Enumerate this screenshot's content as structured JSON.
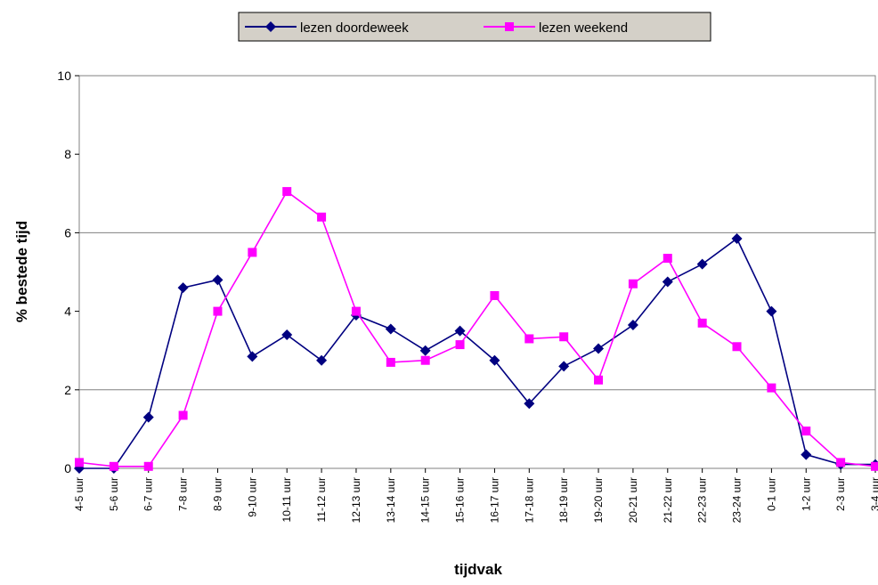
{
  "chart_data": {
    "type": "line",
    "title": "",
    "xlabel": "tijdvak",
    "ylabel": "% bestede tijd",
    "ylim": [
      0,
      10
    ],
    "yticks": [
      "0",
      "2",
      "4",
      "6",
      "8",
      "10"
    ],
    "grid": "horizontal at 2 and 6",
    "legend_position": "top",
    "categories": [
      "4-5 uur",
      "5-6 uur",
      "6-7 uur",
      "7-8 uur",
      "8-9 uur",
      "9-10 uur",
      "10-11 uur",
      "11-12 uur",
      "12-13 uur",
      "13-14 uur",
      "14-15 uur",
      "15-16 uur",
      "16-17 uur",
      "17-18 uur",
      "18-19 uur",
      "19-20 uur",
      "20-21 uur",
      "21-22 uur",
      "22-23 uur",
      "23-24 uur",
      "0-1 uur",
      "1-2 uur",
      "2-3 uur",
      "3-4 uur"
    ],
    "series": [
      {
        "name": "lezen doordeweek",
        "color": "#000080",
        "marker": "diamond",
        "values": [
          0.0,
          0.0,
          1.3,
          4.6,
          4.8,
          2.85,
          3.4,
          2.75,
          3.9,
          3.55,
          3.0,
          3.5,
          2.75,
          1.65,
          2.6,
          3.05,
          3.65,
          4.75,
          5.2,
          5.85,
          4.0,
          0.35,
          0.1,
          0.1
        ]
      },
      {
        "name": "lezen weekend",
        "color": "#ff00ff",
        "marker": "square",
        "values": [
          0.15,
          0.05,
          0.05,
          1.35,
          4.0,
          5.5,
          7.05,
          6.4,
          4.0,
          2.7,
          2.75,
          3.15,
          4.4,
          3.3,
          3.35,
          2.25,
          4.7,
          5.35,
          3.7,
          3.1,
          2.05,
          0.95,
          0.15,
          0.05
        ]
      }
    ]
  }
}
